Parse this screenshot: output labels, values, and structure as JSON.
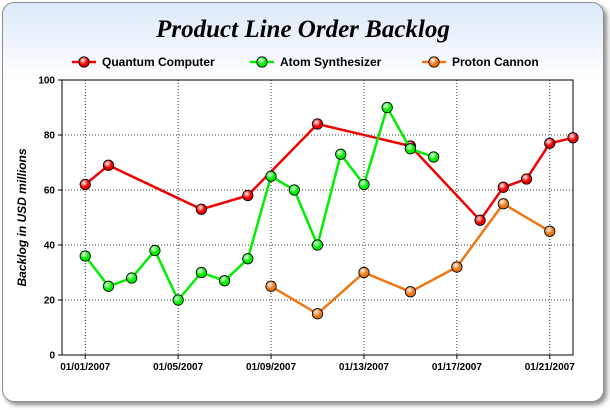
{
  "chart_data": {
    "type": "line",
    "title": "Product Line Order Backlog",
    "ylabel": "Backlog in USD millions",
    "xlabel": "",
    "ylim": [
      0,
      100
    ],
    "yticks": [
      "0",
      "20",
      "40",
      "60",
      "80",
      "100"
    ],
    "xlim": [
      "2006-12-31",
      "2007-01-22"
    ],
    "xticks": [
      "01/01/2007",
      "01/05/2007",
      "01/09/2007",
      "01/13/2007",
      "01/17/2007",
      "01/21/2007"
    ],
    "grid": true,
    "legend_position": "top",
    "series": [
      {
        "name": "Quantum Computer",
        "color": "#ee0000",
        "points": [
          {
            "x": "2007-01-01",
            "y": 62
          },
          {
            "x": "2007-01-02",
            "y": 69
          },
          {
            "x": "2007-01-06",
            "y": 53
          },
          {
            "x": "2007-01-08",
            "y": 58
          },
          {
            "x": "2007-01-11",
            "y": 84
          },
          {
            "x": "2007-01-15",
            "y": 76
          },
          {
            "x": "2007-01-18",
            "y": 49
          },
          {
            "x": "2007-01-19",
            "y": 61
          },
          {
            "x": "2007-01-20",
            "y": 64
          },
          {
            "x": "2007-01-21",
            "y": 77
          },
          {
            "x": "2007-01-22",
            "y": 79
          }
        ]
      },
      {
        "name": "Atom Synthesizer",
        "color": "#00ee00",
        "points": [
          {
            "x": "2007-01-01",
            "y": 36
          },
          {
            "x": "2007-01-02",
            "y": 25
          },
          {
            "x": "2007-01-03",
            "y": 28
          },
          {
            "x": "2007-01-04",
            "y": 38
          },
          {
            "x": "2007-01-05",
            "y": 20
          },
          {
            "x": "2007-01-06",
            "y": 30
          },
          {
            "x": "2007-01-07",
            "y": 27
          },
          {
            "x": "2007-01-08",
            "y": 35
          },
          {
            "x": "2007-01-09",
            "y": 65
          },
          {
            "x": "2007-01-10",
            "y": 60
          },
          {
            "x": "2007-01-11",
            "y": 40
          },
          {
            "x": "2007-01-12",
            "y": 73
          },
          {
            "x": "2007-01-13",
            "y": 62
          },
          {
            "x": "2007-01-14",
            "y": 90
          },
          {
            "x": "2007-01-15",
            "y": 75
          },
          {
            "x": "2007-01-16",
            "y": 72
          }
        ]
      },
      {
        "name": "Proton Cannon",
        "color": "#ee7711",
        "points": [
          {
            "x": "2007-01-09",
            "y": 25
          },
          {
            "x": "2007-01-11",
            "y": 15
          },
          {
            "x": "2007-01-13",
            "y": 30
          },
          {
            "x": "2007-01-15",
            "y": 23
          },
          {
            "x": "2007-01-17",
            "y": 32
          },
          {
            "x": "2007-01-19",
            "y": 55
          },
          {
            "x": "2007-01-21",
            "y": 45
          }
        ]
      }
    ]
  }
}
